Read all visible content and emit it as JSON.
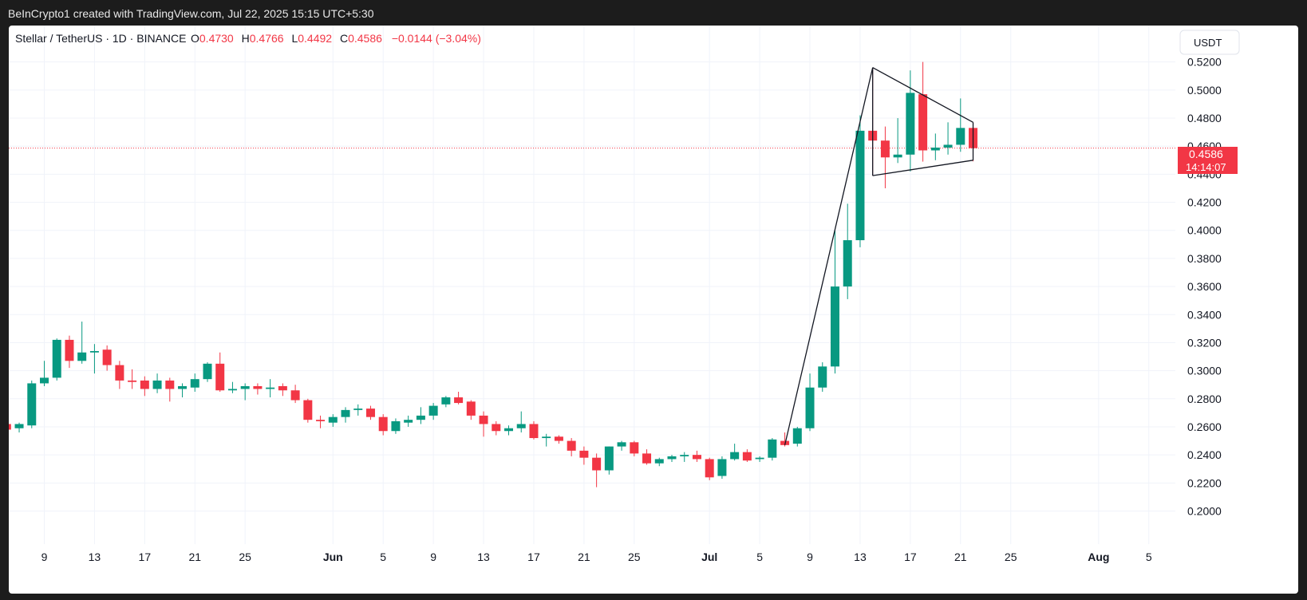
{
  "header": {
    "credit": "BeInCrypto1 created with TradingView.com, Jul 22, 2025 15:15 UTC+5:30"
  },
  "legend": {
    "symbol": "Stellar / TetherUS · 1D · BINANCE",
    "o_label": "O",
    "o_value": "0.4730",
    "h_label": "H",
    "h_value": "0.4766",
    "l_label": "L",
    "l_value": "0.4492",
    "c_label": "C",
    "c_value": "0.4586",
    "change": "−0.0144 (−3.04%)"
  },
  "price_axis": {
    "currency": "USDT",
    "ticks": [
      "0.5200",
      "0.5000",
      "0.4800",
      "0.4600",
      "0.4400",
      "0.4200",
      "0.4000",
      "0.3800",
      "0.3600",
      "0.3400",
      "0.3200",
      "0.3000",
      "0.2800",
      "0.2600",
      "0.2400",
      "0.2200",
      "0.2000"
    ],
    "last_price": "0.4586",
    "countdown": "14:14:07"
  },
  "colors": {
    "up": "#26a69a",
    "up_fill": "#089981",
    "down": "#f23645",
    "grid": "#f0f3fa",
    "text": "#131722"
  },
  "chart_data": {
    "type": "candlestick",
    "title": "Stellar / TetherUS · 1D · BINANCE",
    "ylabel": "USDT",
    "ylim": [
      0.18,
      0.535
    ],
    "x_tick_labels": [
      {
        "label": "9",
        "date": "2025-05-09"
      },
      {
        "label": "13",
        "date": "2025-05-13"
      },
      {
        "label": "17",
        "date": "2025-05-17"
      },
      {
        "label": "21",
        "date": "2025-05-21"
      },
      {
        "label": "25",
        "date": "2025-05-25"
      },
      {
        "label": "Jun",
        "date": "2025-06-01"
      },
      {
        "label": "5",
        "date": "2025-06-05"
      },
      {
        "label": "9",
        "date": "2025-06-09"
      },
      {
        "label": "13",
        "date": "2025-06-13"
      },
      {
        "label": "17",
        "date": "2025-06-17"
      },
      {
        "label": "21",
        "date": "2025-06-21"
      },
      {
        "label": "25",
        "date": "2025-06-25"
      },
      {
        "label": "Jul",
        "date": "2025-07-01"
      },
      {
        "label": "5",
        "date": "2025-07-05"
      },
      {
        "label": "9",
        "date": "2025-07-09"
      },
      {
        "label": "13",
        "date": "2025-07-13"
      },
      {
        "label": "17",
        "date": "2025-07-17"
      },
      {
        "label": "21",
        "date": "2025-07-21"
      },
      {
        "label": "25",
        "date": "2025-07-25"
      },
      {
        "label": "Aug",
        "date": "2025-08-01"
      },
      {
        "label": "5",
        "date": "2025-08-05"
      }
    ],
    "ohlc": [
      {
        "date": "2025-05-06",
        "open": 0.262,
        "high": 0.264,
        "low": 0.257,
        "close": 0.258
      },
      {
        "date": "2025-05-07",
        "open": 0.259,
        "high": 0.263,
        "low": 0.256,
        "close": 0.262
      },
      {
        "date": "2025-05-08",
        "open": 0.261,
        "high": 0.293,
        "low": 0.259,
        "close": 0.291
      },
      {
        "date": "2025-05-09",
        "open": 0.291,
        "high": 0.307,
        "low": 0.289,
        "close": 0.295
      },
      {
        "date": "2025-05-10",
        "open": 0.295,
        "high": 0.323,
        "low": 0.293,
        "close": 0.322
      },
      {
        "date": "2025-05-11",
        "open": 0.322,
        "high": 0.325,
        "low": 0.302,
        "close": 0.307
      },
      {
        "date": "2025-05-12",
        "open": 0.307,
        "high": 0.335,
        "low": 0.305,
        "close": 0.313
      },
      {
        "date": "2025-05-13",
        "open": 0.313,
        "high": 0.319,
        "low": 0.298,
        "close": 0.314
      },
      {
        "date": "2025-05-14",
        "open": 0.315,
        "high": 0.318,
        "low": 0.3,
        "close": 0.304
      },
      {
        "date": "2025-05-15",
        "open": 0.304,
        "high": 0.307,
        "low": 0.287,
        "close": 0.293
      },
      {
        "date": "2025-05-16",
        "open": 0.293,
        "high": 0.301,
        "low": 0.287,
        "close": 0.292
      },
      {
        "date": "2025-05-17",
        "open": 0.293,
        "high": 0.296,
        "low": 0.282,
        "close": 0.287
      },
      {
        "date": "2025-05-18",
        "open": 0.287,
        "high": 0.298,
        "low": 0.284,
        "close": 0.293
      },
      {
        "date": "2025-05-19",
        "open": 0.293,
        "high": 0.295,
        "low": 0.278,
        "close": 0.287
      },
      {
        "date": "2025-05-20",
        "open": 0.287,
        "high": 0.291,
        "low": 0.281,
        "close": 0.289
      },
      {
        "date": "2025-05-21",
        "open": 0.288,
        "high": 0.298,
        "low": 0.285,
        "close": 0.294
      },
      {
        "date": "2025-05-22",
        "open": 0.294,
        "high": 0.306,
        "low": 0.292,
        "close": 0.305
      },
      {
        "date": "2025-05-23",
        "open": 0.305,
        "high": 0.313,
        "low": 0.285,
        "close": 0.286
      },
      {
        "date": "2025-05-24",
        "open": 0.286,
        "high": 0.292,
        "low": 0.284,
        "close": 0.287
      },
      {
        "date": "2025-05-25",
        "open": 0.287,
        "high": 0.291,
        "low": 0.279,
        "close": 0.289
      },
      {
        "date": "2025-05-26",
        "open": 0.289,
        "high": 0.291,
        "low": 0.283,
        "close": 0.287
      },
      {
        "date": "2025-05-27",
        "open": 0.287,
        "high": 0.294,
        "low": 0.281,
        "close": 0.288
      },
      {
        "date": "2025-05-28",
        "open": 0.289,
        "high": 0.291,
        "low": 0.282,
        "close": 0.286
      },
      {
        "date": "2025-05-29",
        "open": 0.286,
        "high": 0.29,
        "low": 0.277,
        "close": 0.279
      },
      {
        "date": "2025-05-30",
        "open": 0.279,
        "high": 0.28,
        "low": 0.263,
        "close": 0.265
      },
      {
        "date": "2025-05-31",
        "open": 0.265,
        "high": 0.268,
        "low": 0.259,
        "close": 0.264
      },
      {
        "date": "2025-06-01",
        "open": 0.263,
        "high": 0.269,
        "low": 0.26,
        "close": 0.267
      },
      {
        "date": "2025-06-02",
        "open": 0.267,
        "high": 0.274,
        "low": 0.263,
        "close": 0.272
      },
      {
        "date": "2025-06-03",
        "open": 0.272,
        "high": 0.276,
        "low": 0.268,
        "close": 0.273
      },
      {
        "date": "2025-06-04",
        "open": 0.273,
        "high": 0.275,
        "low": 0.265,
        "close": 0.267
      },
      {
        "date": "2025-06-05",
        "open": 0.267,
        "high": 0.269,
        "low": 0.254,
        "close": 0.257
      },
      {
        "date": "2025-06-06",
        "open": 0.257,
        "high": 0.266,
        "low": 0.255,
        "close": 0.264
      },
      {
        "date": "2025-06-07",
        "open": 0.263,
        "high": 0.268,
        "low": 0.26,
        "close": 0.265
      },
      {
        "date": "2025-06-08",
        "open": 0.265,
        "high": 0.274,
        "low": 0.262,
        "close": 0.268
      },
      {
        "date": "2025-06-09",
        "open": 0.268,
        "high": 0.277,
        "low": 0.265,
        "close": 0.275
      },
      {
        "date": "2025-06-10",
        "open": 0.276,
        "high": 0.282,
        "low": 0.274,
        "close": 0.281
      },
      {
        "date": "2025-06-11",
        "open": 0.281,
        "high": 0.285,
        "low": 0.276,
        "close": 0.277
      },
      {
        "date": "2025-06-12",
        "open": 0.278,
        "high": 0.279,
        "low": 0.265,
        "close": 0.268
      },
      {
        "date": "2025-06-13",
        "open": 0.268,
        "high": 0.271,
        "low": 0.253,
        "close": 0.262
      },
      {
        "date": "2025-06-14",
        "open": 0.262,
        "high": 0.264,
        "low": 0.254,
        "close": 0.257
      },
      {
        "date": "2025-06-15",
        "open": 0.257,
        "high": 0.261,
        "low": 0.254,
        "close": 0.259
      },
      {
        "date": "2025-06-16",
        "open": 0.259,
        "high": 0.271,
        "low": 0.256,
        "close": 0.262
      },
      {
        "date": "2025-06-17",
        "open": 0.262,
        "high": 0.264,
        "low": 0.251,
        "close": 0.252
      },
      {
        "date": "2025-06-18",
        "open": 0.252,
        "high": 0.255,
        "low": 0.246,
        "close": 0.253
      },
      {
        "date": "2025-06-19",
        "open": 0.253,
        "high": 0.254,
        "low": 0.248,
        "close": 0.25
      },
      {
        "date": "2025-06-20",
        "open": 0.25,
        "high": 0.252,
        "low": 0.239,
        "close": 0.243
      },
      {
        "date": "2025-06-21",
        "open": 0.243,
        "high": 0.246,
        "low": 0.233,
        "close": 0.238
      },
      {
        "date": "2025-06-22",
        "open": 0.238,
        "high": 0.241,
        "low": 0.217,
        "close": 0.229
      },
      {
        "date": "2025-06-23",
        "open": 0.229,
        "high": 0.246,
        "low": 0.226,
        "close": 0.246
      },
      {
        "date": "2025-06-24",
        "open": 0.246,
        "high": 0.25,
        "low": 0.243,
        "close": 0.249
      },
      {
        "date": "2025-06-25",
        "open": 0.249,
        "high": 0.25,
        "low": 0.239,
        "close": 0.241
      },
      {
        "date": "2025-06-26",
        "open": 0.241,
        "high": 0.244,
        "low": 0.233,
        "close": 0.234
      },
      {
        "date": "2025-06-27",
        "open": 0.234,
        "high": 0.238,
        "low": 0.232,
        "close": 0.237
      },
      {
        "date": "2025-06-28",
        "open": 0.237,
        "high": 0.24,
        "low": 0.235,
        "close": 0.239
      },
      {
        "date": "2025-06-29",
        "open": 0.239,
        "high": 0.242,
        "low": 0.235,
        "close": 0.24
      },
      {
        "date": "2025-06-30",
        "open": 0.24,
        "high": 0.243,
        "low": 0.235,
        "close": 0.237
      },
      {
        "date": "2025-07-01",
        "open": 0.237,
        "high": 0.238,
        "low": 0.222,
        "close": 0.224
      },
      {
        "date": "2025-07-02",
        "open": 0.225,
        "high": 0.239,
        "low": 0.223,
        "close": 0.237
      },
      {
        "date": "2025-07-03",
        "open": 0.237,
        "high": 0.248,
        "low": 0.236,
        "close": 0.242
      },
      {
        "date": "2025-07-04",
        "open": 0.242,
        "high": 0.244,
        "low": 0.235,
        "close": 0.236
      },
      {
        "date": "2025-07-05",
        "open": 0.237,
        "high": 0.239,
        "low": 0.235,
        "close": 0.238
      },
      {
        "date": "2025-07-06",
        "open": 0.238,
        "high": 0.252,
        "low": 0.236,
        "close": 0.251
      },
      {
        "date": "2025-07-07",
        "open": 0.25,
        "high": 0.256,
        "low": 0.246,
        "close": 0.247
      },
      {
        "date": "2025-07-08",
        "open": 0.248,
        "high": 0.26,
        "low": 0.246,
        "close": 0.259
      },
      {
        "date": "2025-07-09",
        "open": 0.259,
        "high": 0.298,
        "low": 0.257,
        "close": 0.288
      },
      {
        "date": "2025-07-10",
        "open": 0.288,
        "high": 0.306,
        "low": 0.285,
        "close": 0.303
      },
      {
        "date": "2025-07-11",
        "open": 0.303,
        "high": 0.4,
        "low": 0.298,
        "close": 0.36
      },
      {
        "date": "2025-07-12",
        "open": 0.36,
        "high": 0.419,
        "low": 0.351,
        "close": 0.393
      },
      {
        "date": "2025-07-13",
        "open": 0.393,
        "high": 0.482,
        "low": 0.388,
        "close": 0.471
      },
      {
        "date": "2025-07-14",
        "open": 0.471,
        "high": 0.516,
        "low": 0.439,
        "close": 0.464
      },
      {
        "date": "2025-07-15",
        "open": 0.464,
        "high": 0.474,
        "low": 0.43,
        "close": 0.452
      },
      {
        "date": "2025-07-16",
        "open": 0.452,
        "high": 0.48,
        "low": 0.448,
        "close": 0.454
      },
      {
        "date": "2025-07-17",
        "open": 0.454,
        "high": 0.514,
        "low": 0.442,
        "close": 0.498
      },
      {
        "date": "2025-07-18",
        "open": 0.497,
        "high": 0.52,
        "low": 0.449,
        "close": 0.457
      },
      {
        "date": "2025-07-19",
        "open": 0.457,
        "high": 0.469,
        "low": 0.45,
        "close": 0.459
      },
      {
        "date": "2025-07-20",
        "open": 0.459,
        "high": 0.477,
        "low": 0.454,
        "close": 0.461
      },
      {
        "date": "2025-07-21",
        "open": 0.461,
        "high": 0.494,
        "low": 0.456,
        "close": 0.473
      },
      {
        "date": "2025-07-22",
        "open": 0.473,
        "high": 0.4766,
        "low": 0.4492,
        "close": 0.4586
      }
    ],
    "last_price_line": 0.4586,
    "drawing": {
      "type": "pennant",
      "points": [
        {
          "date": "2025-07-07",
          "price": 0.247
        },
        {
          "date": "2025-07-14",
          "price": 0.516
        },
        {
          "date": "2025-07-22",
          "price": 0.477
        },
        {
          "date": "2025-07-22",
          "price": 0.45
        },
        {
          "date": "2025-07-14",
          "price": 0.439
        }
      ]
    }
  }
}
